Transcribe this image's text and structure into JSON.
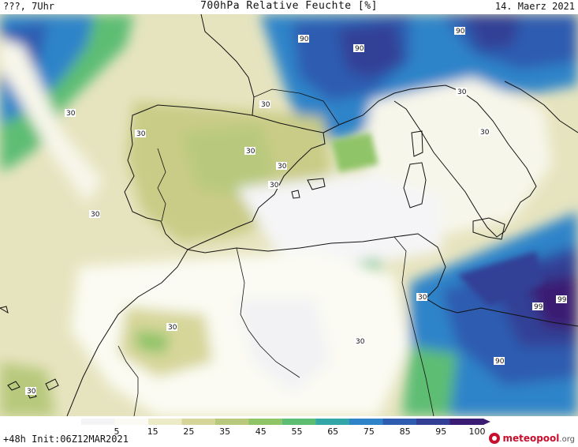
{
  "header": {
    "left": "???, 7Uhr",
    "title": "700hPa Relative Feuchte [%]",
    "date": "14. Maerz 2021"
  },
  "footer": {
    "run_info": "+48h Init:06Z12MAR2021",
    "logo_text": "meteopool",
    "logo_domain": ".org"
  },
  "colorbar": {
    "ticks": [
      "5",
      "15",
      "25",
      "35",
      "45",
      "55",
      "65",
      "75",
      "85",
      "95",
      "100"
    ],
    "colors": [
      "#f4f4f6",
      "#fbfbf3",
      "#ecebc8",
      "#d7d69a",
      "#b8c97d",
      "#8fc467",
      "#5dbd73",
      "#33a7a8",
      "#2f84c9",
      "#2f5bb0",
      "#333f95",
      "#3a1c73"
    ]
  },
  "contour_labels": [
    "90",
    "90",
    "90",
    "30",
    "30",
    "30",
    "30",
    "30",
    "30",
    "30",
    "30",
    "30",
    "30",
    "30",
    "30",
    "90",
    "99",
    "99",
    "30"
  ]
}
